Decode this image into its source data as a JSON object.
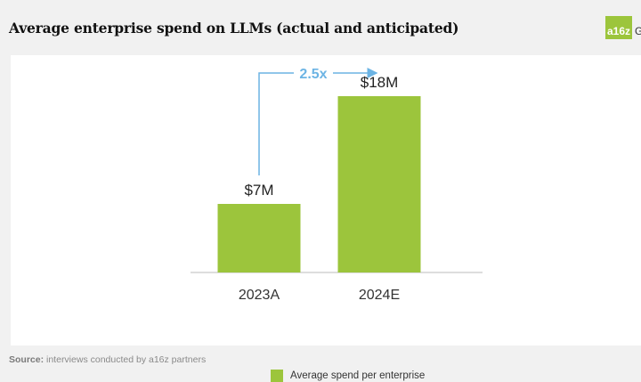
{
  "title": "Average enterprise spend on LLMs (actual and anticipated)",
  "logo": {
    "mark": "a16z",
    "text": "Gr"
  },
  "source": {
    "label": "Source:",
    "text": " interviews conducted by a16z partners"
  },
  "chart_data": {
    "type": "bar",
    "categories": [
      "2023A",
      "2024E"
    ],
    "series": [
      {
        "name": "Average spend per enterprise",
        "values": [
          7,
          18
        ]
      }
    ],
    "value_labels": [
      "$7M",
      "$18M"
    ],
    "unit": "$M",
    "ylim": [
      0,
      20
    ],
    "grid": false,
    "legend": "bottom",
    "annotation": {
      "text": "2.5x",
      "from": "2023A",
      "to": "2024E"
    },
    "colors": {
      "bar": "#9cc53c",
      "annotation": "#6cb4e4",
      "axis": "#bbbbbb"
    }
  }
}
